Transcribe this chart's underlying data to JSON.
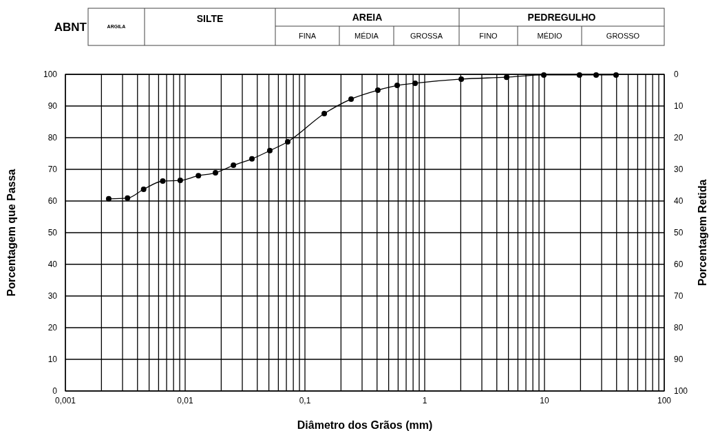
{
  "chart_data": {
    "type": "line",
    "xlabel": "Diâmetro dos Grãos (mm)",
    "ylabel": "Porcentagem  que Passa",
    "y2label": "Porcentagem Retida",
    "annotations": [
      "ABNT",
      "ARGILA",
      "SILTE",
      "AREIA",
      "PEDREGULHO",
      "FINA",
      "MÉDIA",
      "GROSSA",
      "FINO",
      "MÉDIO",
      "GROSSO"
    ],
    "log": "x",
    "grid": true,
    "marker": "circle",
    "line_style": "solid",
    "xlim": [
      0.001,
      100
    ],
    "xticks": [
      {
        "value": 0.001,
        "label": "0,001"
      },
      {
        "value": 0.002,
        "label": null
      },
      {
        "value": 0.003,
        "label": null
      },
      {
        "value": 0.004,
        "label": null
      },
      {
        "value": 0.005,
        "label": null
      },
      {
        "value": 0.006,
        "label": null
      },
      {
        "value": 0.007,
        "label": null
      },
      {
        "value": 0.008,
        "label": null
      },
      {
        "value": 0.009,
        "label": null
      },
      {
        "value": 0.01,
        "label": "0,01"
      },
      {
        "value": 0.02,
        "label": null
      },
      {
        "value": 0.03,
        "label": null
      },
      {
        "value": 0.04,
        "label": null
      },
      {
        "value": 0.05,
        "label": null
      },
      {
        "value": 0.06,
        "label": null
      },
      {
        "value": 0.07,
        "label": null
      },
      {
        "value": 0.08,
        "label": null
      },
      {
        "value": 0.09,
        "label": null
      },
      {
        "value": 0.1,
        "label": "0,1"
      },
      {
        "value": 0.2,
        "label": null
      },
      {
        "value": 0.3,
        "label": null
      },
      {
        "value": 0.4,
        "label": null
      },
      {
        "value": 0.5,
        "label": null
      },
      {
        "value": 0.6,
        "label": null
      },
      {
        "value": 0.7,
        "label": null
      },
      {
        "value": 0.8,
        "label": null
      },
      {
        "value": 0.9,
        "label": null
      },
      {
        "value": 1,
        "label": "1"
      },
      {
        "value": 2,
        "label": null
      },
      {
        "value": 3,
        "label": null
      },
      {
        "value": 4,
        "label": null
      },
      {
        "value": 5,
        "label": null
      },
      {
        "value": 6,
        "label": null
      },
      {
        "value": 7,
        "label": null
      },
      {
        "value": 8,
        "label": null
      },
      {
        "value": 9,
        "label": null
      },
      {
        "value": 10,
        "label": "10"
      },
      {
        "value": 20,
        "label": null
      },
      {
        "value": 30,
        "label": null
      },
      {
        "value": 40,
        "label": null
      },
      {
        "value": 50,
        "label": null
      },
      {
        "value": 60,
        "label": null
      },
      {
        "value": 70,
        "label": null
      },
      {
        "value": 80,
        "label": null
      },
      {
        "value": 90,
        "label": null
      },
      {
        "value": 100,
        "label": "100"
      }
    ],
    "ylim": [
      0,
      100
    ],
    "yticks": [
      0,
      10,
      20,
      30,
      40,
      50,
      60,
      70,
      80,
      90,
      100
    ],
    "y2lim": [
      100,
      0
    ],
    "y2ticks": [
      0,
      10,
      20,
      30,
      40,
      50,
      60,
      70,
      80,
      90,
      100
    ],
    "x": [
      0.0023,
      0.0033,
      0.0045,
      0.0065,
      0.0091,
      0.0129,
      0.0179,
      0.0253,
      0.0361,
      0.0509,
      0.0718,
      0.145,
      0.243,
      0.406,
      0.589,
      0.832,
      2.02,
      4.83,
      9.87,
      19.6,
      27,
      39.6
    ],
    "series": [
      {
        "color": "#000000",
        "values": [
          60.7,
          60.9,
          63.7,
          66.3,
          66.5,
          68.0,
          68.9,
          71.3,
          73.3,
          75.9,
          78.7,
          87.6,
          92.2,
          95.0,
          96.5,
          97.2,
          98.5,
          99.1,
          99.8,
          99.8,
          99.8,
          99.8
        ]
      }
    ]
  }
}
